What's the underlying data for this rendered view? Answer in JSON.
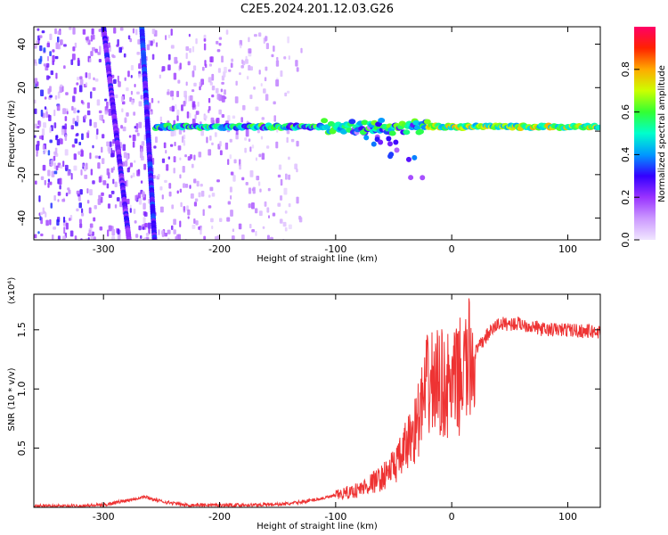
{
  "title": "C2E5.2024.201.12.03.G26",
  "chart_data": [
    {
      "type": "heatmap",
      "title": "C2E5.2024.201.12.03.G26",
      "xlabel": "Height of straight line (km)",
      "ylabel": "Frequency (Hz)",
      "xlim": [
        -360,
        128
      ],
      "ylim": [
        -50,
        48
      ],
      "x_ticks": [
        -300,
        -200,
        -100,
        0,
        100
      ],
      "y_ticks": [
        -40,
        -20,
        0,
        20,
        40
      ],
      "colorbar": {
        "label": "Normalized spectral amplitude",
        "range": [
          0.0,
          1.0
        ],
        "ticks": [
          0.0,
          0.2,
          0.4,
          0.6,
          0.8
        ],
        "colors": [
          "#f0e6ff",
          "#cc99ff",
          "#9933ff",
          "#3300ff",
          "#0099ff",
          "#00ffcc",
          "#33ff33",
          "#ccff00",
          "#ffaa00",
          "#ff2200",
          "#ff0066"
        ]
      },
      "features": [
        {
          "name": "narrowband line",
          "x_range": [
            -255,
            128
          ],
          "frequency": 2,
          "amplitude": 0.45
        },
        {
          "name": "diagonal streak A",
          "from": [
            -300,
            48
          ],
          "to": [
            -278,
            -50
          ],
          "amplitude": 0.25
        },
        {
          "name": "diagonal streak B",
          "from": [
            -267,
            48
          ],
          "to": [
            -256,
            -50
          ],
          "amplitude": 0.3
        },
        {
          "name": "broadband noise",
          "x_range": [
            -360,
            -130
          ],
          "frequency_range": [
            -50,
            48
          ],
          "amplitude": 0.1
        }
      ]
    },
    {
      "type": "line",
      "xlabel": "Height of straight line (km)",
      "ylabel": "SNR (10 * v/v)",
      "y_multiplier": "(x10⁴)",
      "xlim": [
        -360,
        128
      ],
      "ylim": [
        0,
        1.8
      ],
      "x_ticks": [
        -300,
        -200,
        -100,
        0,
        100
      ],
      "y_ticks": [
        0.5,
        1.0,
        1.5
      ],
      "y_tick_labels": [
        "0.5",
        "1.0",
        "1.5"
      ],
      "color": "#ee3333",
      "series": [
        {
          "x": [
            -360,
            -330,
            -300,
            -280,
            -265,
            -250,
            -230,
            -200,
            -170,
            -140,
            -120,
            -100,
            -80,
            -60,
            -45,
            -30,
            -20,
            -10,
            0,
            10,
            20,
            30,
            40,
            60,
            80,
            100,
            128
          ],
          "values": [
            0.01,
            0.01,
            0.02,
            0.06,
            0.09,
            0.05,
            0.02,
            0.02,
            0.02,
            0.03,
            0.06,
            0.1,
            0.15,
            0.25,
            0.4,
            0.7,
            1.05,
            1.05,
            1.0,
            1.15,
            1.3,
            1.45,
            1.55,
            1.55,
            1.5,
            1.5,
            1.48
          ]
        }
      ]
    }
  ]
}
